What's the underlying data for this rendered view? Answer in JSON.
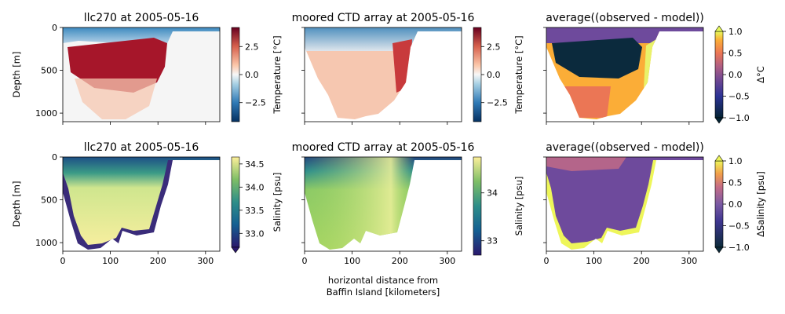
{
  "x_ticks": [
    "0",
    "100",
    "200",
    "300"
  ],
  "y_ticks": [
    "0",
    "500",
    "1000"
  ],
  "colors": {
    "section_fill": "#f5f5f5",
    "blue": "#2f7fb8",
    "red": "#a6162a",
    "pink": "#f6c7b0",
    "dark_navy": "#0b2a3d",
    "purple": "#6e4a9c",
    "yellow": "#e9f26a",
    "salinity_high": "#f4ef9a",
    "salinity_low": "#3a2c7a",
    "salinity_mid": "#9fd06a"
  },
  "chart_data": [
    {
      "type": "heatmap",
      "title": "llc270 at 2005-05-16",
      "ylabel": "Depth [m]",
      "xlabel": "",
      "xlim": [
        0,
        330
      ],
      "ylim": [
        1100,
        0
      ],
      "colorbar": {
        "label": "Temperature [$^\\circ$C]",
        "ticks": [
          "2.5",
          "0.0",
          "−2.5"
        ],
        "range": [
          -4.2,
          4.2
        ],
        "colormap": "RdBu_r",
        "extend": "neither"
      }
    },
    {
      "type": "heatmap",
      "title": "moored CTD array at 2005-05-16",
      "ylabel": "",
      "xlabel": "",
      "xlim": [
        0,
        330
      ],
      "ylim": [
        1100,
        0
      ],
      "colorbar": {
        "label": "Temperature [$^\\circ$C]",
        "ticks": [
          "2.5",
          "0.0",
          "−2.5"
        ],
        "range": [
          -4.2,
          4.2
        ],
        "colormap": "RdBu_r",
        "extend": "neither"
      }
    },
    {
      "type": "heatmap",
      "title": "average((observed - model))",
      "ylabel": "",
      "xlabel": "",
      "xlim": [
        0,
        330
      ],
      "ylim": [
        1100,
        0
      ],
      "colorbar": {
        "label": "Δ$^\\circ$C",
        "ticks": [
          "1.0",
          "0.5",
          "0.0",
          "−0.5",
          "−1.0"
        ],
        "range": [
          -1,
          1
        ],
        "colormap": "thermal",
        "extend": "both"
      }
    },
    {
      "type": "heatmap",
      "title": "llc270 at 2005-05-16",
      "ylabel": "Depth [m]",
      "xlabel": "",
      "xlim": [
        0,
        330
      ],
      "ylim": [
        1100,
        0
      ],
      "colorbar": {
        "label": "Salinity [psu]",
        "ticks": [
          "34.5",
          "34.0",
          "33.5",
          "33.0"
        ],
        "range": [
          32.7,
          34.65
        ],
        "colormap": "haline",
        "extend": "min"
      }
    },
    {
      "type": "heatmap",
      "title": "moored CTD array at 2005-05-16",
      "ylabel": "",
      "xlabel": "horizontal distance from\nBaffin Island [kilometers]",
      "xlim": [
        0,
        330
      ],
      "ylim": [
        1100,
        0
      ],
      "colorbar": {
        "label": "Salinity [psu]",
        "ticks": [
          "34",
          "33"
        ],
        "range": [
          32.7,
          34.75
        ],
        "colormap": "haline",
        "extend": "neither"
      }
    },
    {
      "type": "heatmap",
      "title": "average((observed - model))",
      "ylabel": "",
      "xlabel": "",
      "xlim": [
        0,
        330
      ],
      "ylim": [
        1100,
        0
      ],
      "colorbar": {
        "label": "ΔSalinity [psu]",
        "ticks": [
          "1.0",
          "0.5",
          "0.0",
          "−0.5",
          "−1.0"
        ],
        "range": [
          -1,
          1
        ],
        "colormap": "plasma",
        "extend": "both"
      }
    }
  ]
}
